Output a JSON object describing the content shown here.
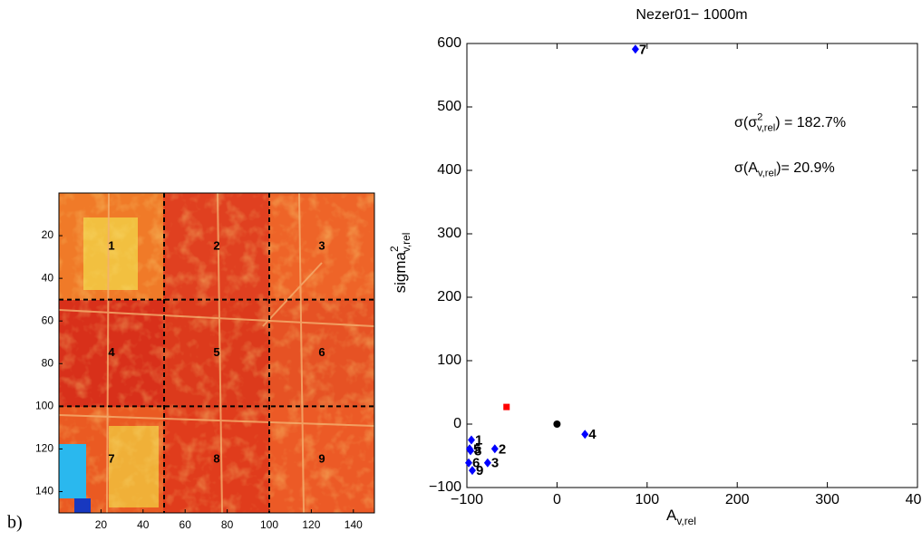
{
  "chart_data": [
    {
      "type": "image",
      "panel_label": "b)",
      "xlim": [
        0,
        150
      ],
      "ylim": [
        150,
        0
      ],
      "xticks": [
        20,
        40,
        60,
        80,
        100,
        120,
        140
      ],
      "yticks": [
        20,
        40,
        60,
        80,
        100,
        120,
        140
      ],
      "dividers": [
        50,
        100
      ],
      "regions": [
        "1",
        "2",
        "3",
        "4",
        "5",
        "6",
        "7",
        "8",
        "9"
      ]
    },
    {
      "type": "scatter",
      "title": "Nezer01− 1000m",
      "xlabel": {
        "base": "A",
        "sub": "v,rel"
      },
      "ylabel": {
        "base": "sigma",
        "sup": "2",
        "sub": "v,rel"
      },
      "xlim": [
        -100,
        400
      ],
      "ylim": [
        -100,
        600
      ],
      "xticks": [
        {
          "value": -100,
          "label": "−100"
        },
        0,
        100,
        200,
        300,
        400
      ],
      "yticks": [
        {
          "value": -100,
          "label": "−100"
        },
        0,
        100,
        200,
        300,
        400,
        500,
        600
      ],
      "grid": false,
      "annotations": [
        {
          "base": "σ(σ",
          "sup": "2",
          "sub": "v,rel",
          "rest": ") = 182.7%"
        },
        {
          "base": "σ(A",
          "sub": "v,rel",
          "rest": ")=  20.9%"
        }
      ],
      "series": [
        {
          "color": "#0000ff",
          "marker": "diamond",
          "x": [
            -95,
            -69,
            -77,
            31,
            -97,
            -98,
            87,
            -96,
            -94
          ],
          "values": [
            -25,
            -39,
            -61,
            -16,
            -39,
            -61,
            591,
            -42,
            -73
          ],
          "labels": [
            "1",
            "2",
            "3",
            "4",
            "5",
            "6",
            "7",
            "8",
            "9"
          ]
        },
        {
          "color": "#ff0000",
          "marker": "square",
          "x": [
            -56
          ],
          "values": [
            27
          ]
        },
        {
          "color": "#000000",
          "marker": "circle",
          "x": [
            0
          ],
          "values": [
            0
          ]
        }
      ]
    }
  ]
}
